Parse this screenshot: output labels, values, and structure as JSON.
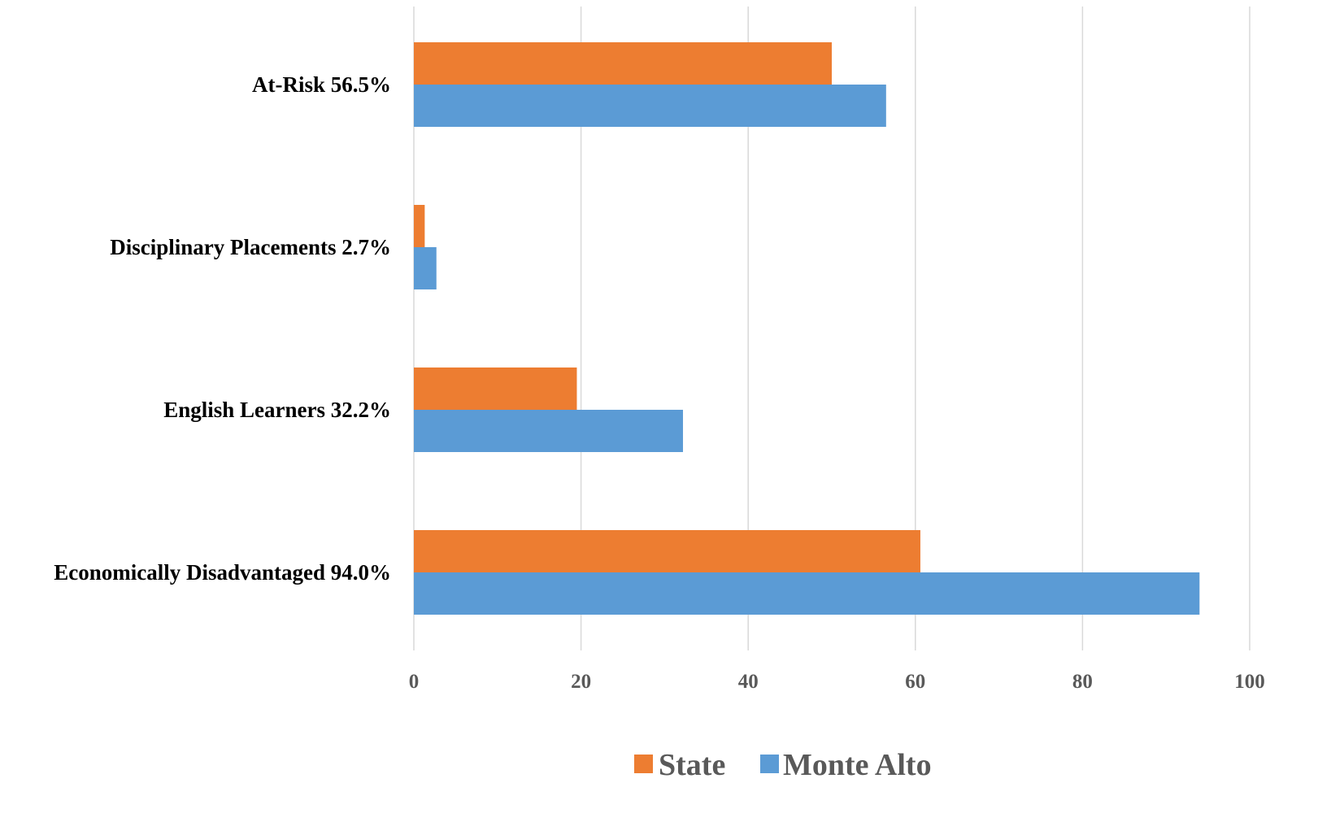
{
  "chart_data": {
    "type": "bar",
    "orientation": "horizontal",
    "categories": [
      "At-Risk 56.5%",
      "Disciplinary Placements 2.7%",
      "English Learners 32.2%",
      "Economically Disadvantaged 94.0%"
    ],
    "series": [
      {
        "name": "State",
        "color": "#ED7D31",
        "values": [
          50.0,
          1.3,
          19.5,
          60.6
        ]
      },
      {
        "name": "Monte Alto",
        "color": "#5B9BD5",
        "values": [
          56.5,
          2.7,
          32.2,
          94.0
        ]
      }
    ],
    "xlim": [
      0,
      100
    ],
    "xticks": [
      "0",
      "20",
      "40",
      "60",
      "80",
      "100"
    ],
    "grid": true,
    "legend_position": "bottom"
  }
}
